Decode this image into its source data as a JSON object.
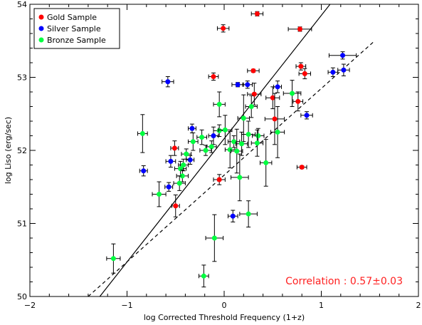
{
  "chart_data": {
    "type": "scatter",
    "xlabel": "log Corrected Threshold Frequency (1+z)",
    "ylabel": "log Liso (erg/sec)",
    "xlim": [
      -2,
      2
    ],
    "ylim": [
      50,
      54
    ],
    "x_ticks": [
      "−2",
      "−1",
      "0",
      "1",
      "2"
    ],
    "y_ticks": [
      "50",
      "51",
      "52",
      "53",
      "54"
    ],
    "annotation": "Correlation : 0.57±0.03",
    "annotation_color": "#ff2020",
    "legend_position": "top-left",
    "lines": [
      {
        "style": "solid",
        "from": [
          -1.28,
          50.0
        ],
        "to": [
          1.09,
          54.0
        ]
      },
      {
        "style": "dashed",
        "from": [
          -1.4,
          50.0
        ],
        "to": [
          1.55,
          53.5
        ]
      }
    ],
    "series": [
      {
        "name": "Gold Sample",
        "color": "#ff0000",
        "points": [
          {
            "x": -0.01,
            "y": 53.67,
            "xerr": 0.06,
            "yerr": 0.05
          },
          {
            "x": 0.34,
            "y": 53.87,
            "xerr": 0.06,
            "yerr": 0.03
          },
          {
            "x": 0.78,
            "y": 53.66,
            "xerr": 0.12,
            "yerr": 0.03
          },
          {
            "x": -0.11,
            "y": 53.01,
            "xerr": 0.05,
            "yerr": 0.05
          },
          {
            "x": 0.3,
            "y": 53.09,
            "xerr": 0.06,
            "yerr": 0.02
          },
          {
            "x": 0.79,
            "y": 53.15,
            "xerr": 0.05,
            "yerr": 0.05
          },
          {
            "x": 0.83,
            "y": 53.05,
            "xerr": 0.06,
            "yerr": 0.07
          },
          {
            "x": 0.31,
            "y": 52.77,
            "xerr": 0.07,
            "yerr": 0.15
          },
          {
            "x": 0.5,
            "y": 52.72,
            "xerr": 0.07,
            "yerr": 0.15
          },
          {
            "x": 0.76,
            "y": 52.67,
            "xerr": 0.05,
            "yerr": 0.13
          },
          {
            "x": 0.52,
            "y": 52.43,
            "xerr": 0.1,
            "yerr": 0.35
          },
          {
            "x": -0.51,
            "y": 52.03,
            "xerr": 0.04,
            "yerr": 0.1
          },
          {
            "x": -0.05,
            "y": 51.6,
            "xerr": 0.06,
            "yerr": 0.07
          },
          {
            "x": 0.8,
            "y": 51.77,
            "xerr": 0.05,
            "yerr": 0.02
          },
          {
            "x": -0.5,
            "y": 51.24,
            "xerr": 0.04,
            "yerr": 0.15
          }
        ]
      },
      {
        "name": "Silver Sample",
        "color": "#0000ff",
        "points": [
          {
            "x": 1.22,
            "y": 53.3,
            "xerr": 0.14,
            "yerr": 0.05
          },
          {
            "x": 1.12,
            "y": 53.07,
            "xerr": 0.05,
            "yerr": 0.06
          },
          {
            "x": 1.23,
            "y": 53.1,
            "xerr": 0.06,
            "yerr": 0.08
          },
          {
            "x": -0.58,
            "y": 52.94,
            "xerr": 0.06,
            "yerr": 0.07
          },
          {
            "x": 0.14,
            "y": 52.9,
            "xerr": 0.06,
            "yerr": 0.03
          },
          {
            "x": 0.24,
            "y": 52.9,
            "xerr": 0.05,
            "yerr": 0.05
          },
          {
            "x": 0.55,
            "y": 52.87,
            "xerr": 0.04,
            "yerr": 0.08
          },
          {
            "x": 0.85,
            "y": 52.48,
            "xerr": 0.06,
            "yerr": 0.05
          },
          {
            "x": -0.33,
            "y": 52.3,
            "xerr": 0.04,
            "yerr": 0.06
          },
          {
            "x": -0.11,
            "y": 52.2,
            "xerr": 0.05,
            "yerr": 0.12
          },
          {
            "x": -0.55,
            "y": 51.85,
            "xerr": 0.05,
            "yerr": 0.08
          },
          {
            "x": -0.35,
            "y": 51.87,
            "xerr": 0.04,
            "yerr": 0.06
          },
          {
            "x": -0.83,
            "y": 51.72,
            "xerr": 0.04,
            "yerr": 0.07
          },
          {
            "x": -0.57,
            "y": 51.5,
            "xerr": 0.04,
            "yerr": 0.06
          },
          {
            "x": 0.09,
            "y": 51.1,
            "xerr": 0.05,
            "yerr": 0.08
          }
        ]
      },
      {
        "name": "Bronze Sample",
        "color": "#00ff40",
        "points": [
          {
            "x": -0.84,
            "y": 52.23,
            "xerr": 0.05,
            "yerr": 0.26
          },
          {
            "x": -0.32,
            "y": 52.12,
            "xerr": 0.05,
            "yerr": 0.12
          },
          {
            "x": -0.23,
            "y": 52.18,
            "xerr": 0.05,
            "yerr": 0.1
          },
          {
            "x": -0.13,
            "y": 52.05,
            "xerr": 0.05,
            "yerr": 0.08
          },
          {
            "x": -0.19,
            "y": 52.0,
            "xerr": 0.06,
            "yerr": 0.07
          },
          {
            "x": -0.39,
            "y": 51.95,
            "xerr": 0.05,
            "yerr": 0.07
          },
          {
            "x": -0.05,
            "y": 52.27,
            "xerr": 0.06,
            "yerr": 0.08
          },
          {
            "x": 0.01,
            "y": 52.28,
            "xerr": 0.07,
            "yerr": 0.2
          },
          {
            "x": -0.05,
            "y": 52.63,
            "xerr": 0.06,
            "yerr": 0.17
          },
          {
            "x": 0.2,
            "y": 52.44,
            "xerr": 0.06,
            "yerr": 0.32
          },
          {
            "x": 0.28,
            "y": 52.6,
            "xerr": 0.06,
            "yerr": 0.15
          },
          {
            "x": 0.25,
            "y": 52.22,
            "xerr": 0.07,
            "yerr": 0.18
          },
          {
            "x": 0.35,
            "y": 52.2,
            "xerr": 0.06,
            "yerr": 0.1
          },
          {
            "x": 0.55,
            "y": 52.25,
            "xerr": 0.07,
            "yerr": 0.35
          },
          {
            "x": 0.7,
            "y": 52.78,
            "xerr": 0.09,
            "yerr": 0.18
          },
          {
            "x": 0.1,
            "y": 52.12,
            "xerr": 0.06,
            "yerr": 0.08
          },
          {
            "x": 0.18,
            "y": 52.09,
            "xerr": 0.06,
            "yerr": 0.16
          },
          {
            "x": 0.34,
            "y": 52.1,
            "xerr": 0.06,
            "yerr": 0.18
          },
          {
            "x": 0.06,
            "y": 52.01,
            "xerr": 0.05,
            "yerr": 0.25
          },
          {
            "x": 0.13,
            "y": 51.99,
            "xerr": 0.06,
            "yerr": 0.3
          },
          {
            "x": -0.42,
            "y": 51.8,
            "xerr": 0.05,
            "yerr": 0.08
          },
          {
            "x": -0.45,
            "y": 51.75,
            "xerr": 0.06,
            "yerr": 0.1
          },
          {
            "x": -0.43,
            "y": 51.65,
            "xerr": 0.06,
            "yerr": 0.08
          },
          {
            "x": -0.67,
            "y": 51.4,
            "xerr": 0.07,
            "yerr": 0.17
          },
          {
            "x": -0.46,
            "y": 51.55,
            "xerr": 0.06,
            "yerr": 0.1
          },
          {
            "x": 0.16,
            "y": 51.63,
            "xerr": 0.09,
            "yerr": 0.32
          },
          {
            "x": 0.43,
            "y": 51.83,
            "xerr": 0.06,
            "yerr": 0.32
          },
          {
            "x": 0.25,
            "y": 51.13,
            "xerr": 0.09,
            "yerr": 0.18
          },
          {
            "x": -0.1,
            "y": 50.8,
            "xerr": 0.09,
            "yerr": 0.32
          },
          {
            "x": -0.21,
            "y": 50.28,
            "xerr": 0.05,
            "yerr": 0.15
          },
          {
            "x": -1.14,
            "y": 50.52,
            "xerr": 0.07,
            "yerr": 0.2
          }
        ]
      }
    ]
  }
}
